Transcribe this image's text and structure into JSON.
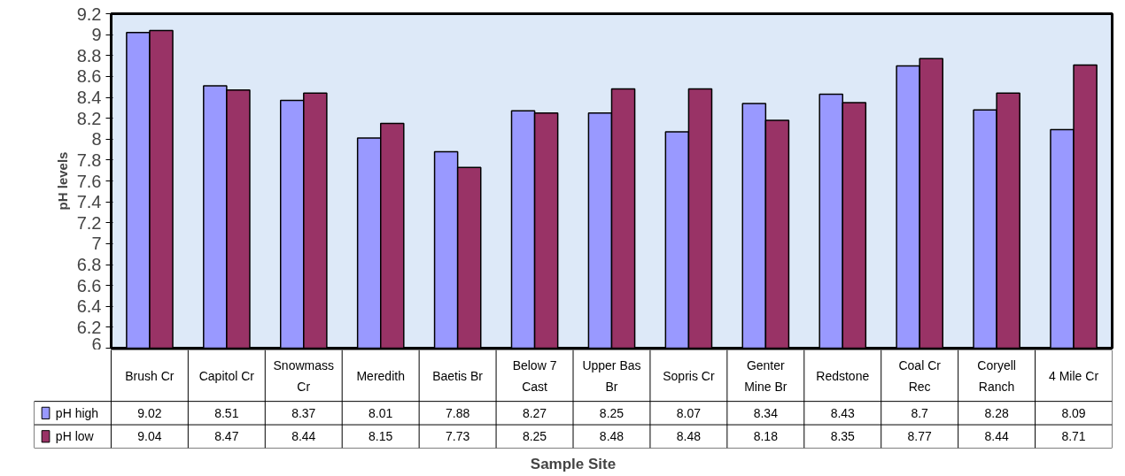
{
  "chart_data": {
    "type": "bar",
    "categories": [
      "Brush Cr",
      "Capitol Cr",
      "Snowmass Cr",
      "Meredith",
      "Baetis Br",
      "Below 7 Cast",
      "Upper Bas Br",
      "Sopris Cr",
      "Genter Mine Br",
      "Redstone",
      "Coal Cr Rec",
      "Coryell Ranch",
      "4 Mile Cr"
    ],
    "series": [
      {
        "name": "pH high",
        "color": "#9999ff",
        "values": [
          9.02,
          8.51,
          8.37,
          8.01,
          7.88,
          8.27,
          8.25,
          8.07,
          8.34,
          8.43,
          8.7,
          8.28,
          8.09
        ]
      },
      {
        "name": "pH low",
        "color": "#993366",
        "values": [
          9.04,
          8.47,
          8.44,
          8.15,
          7.73,
          8.25,
          8.48,
          8.48,
          8.18,
          8.35,
          8.77,
          8.44,
          8.71
        ]
      }
    ],
    "ylim": [
      6,
      9.2
    ],
    "yticks": [
      6,
      {
        "value": 6.2,
        "label": "6.2"
      },
      {
        "value": 6.4,
        "label": "6.4"
      },
      {
        "value": 6.6,
        "label": "6.6"
      },
      {
        "value": 6.8,
        "label": "6.8"
      },
      7,
      {
        "value": 7.2,
        "label": "7.2"
      },
      {
        "value": 7.4,
        "label": "7.4"
      },
      {
        "value": 7.6,
        "label": "7.6"
      },
      {
        "value": 7.8,
        "label": "7.8"
      },
      8,
      {
        "value": 8.2,
        "label": "8.2"
      },
      {
        "value": 8.4,
        "label": "8.4"
      },
      {
        "value": 8.6,
        "label": "8.6"
      },
      {
        "value": 8.8,
        "label": "8.8"
      },
      9,
      {
        "value": 9.2,
        "label": "9.2"
      }
    ],
    "xlabel": "Sample Site",
    "ylabel": "pH levels",
    "data_labels": true,
    "legend": "bottom",
    "grid": false
  }
}
